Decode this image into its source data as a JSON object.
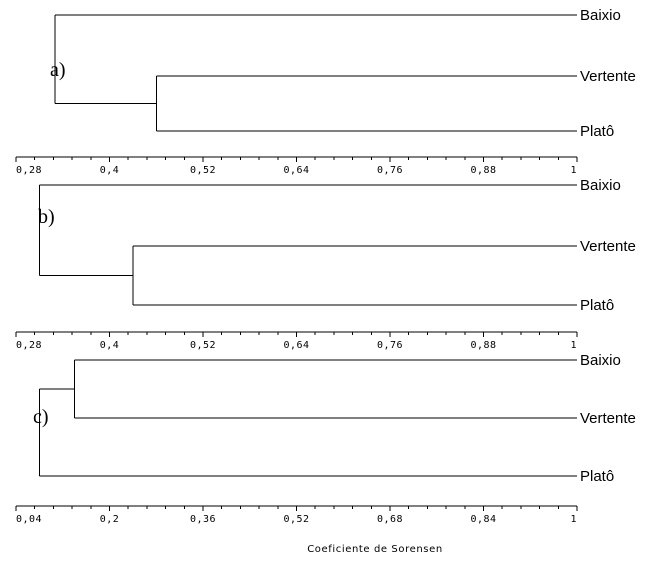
{
  "chart_data": [
    {
      "type": "dendrogram",
      "panel_label": "a)",
      "leaves": [
        "Baixio",
        "Vertente",
        "Platô"
      ],
      "merges": [
        {
          "children": [
            "Vertente",
            "Platô"
          ],
          "similarity": 0.46
        },
        {
          "children": [
            "Baixio",
            "Vertente+Platô"
          ],
          "similarity": 0.33
        }
      ],
      "xlim": [
        0.28,
        1.0
      ],
      "ticks": [
        "0,28",
        "0,4",
        "0,52",
        "0,64",
        "0,76",
        "0,88",
        "1"
      ]
    },
    {
      "type": "dendrogram",
      "panel_label": "b)",
      "leaves": [
        "Baixio",
        "Vertente",
        "Platô"
      ],
      "merges": [
        {
          "children": [
            "Vertente",
            "Platô"
          ],
          "similarity": 0.43
        },
        {
          "children": [
            "Baixio",
            "Vertente+Platô"
          ],
          "similarity": 0.31
        }
      ],
      "xlim": [
        0.28,
        1.0
      ],
      "ticks": [
        "0,28",
        "0,4",
        "0,52",
        "0,64",
        "0,76",
        "0,88",
        "1"
      ]
    },
    {
      "type": "dendrogram",
      "panel_label": "c)",
      "leaves": [
        "Baixio",
        "Vertente",
        "Platô"
      ],
      "merges": [
        {
          "children": [
            "Baixio",
            "Vertente"
          ],
          "similarity": 0.14
        },
        {
          "children": [
            "Baixio+Vertente",
            "Platô"
          ],
          "similarity": 0.08
        }
      ],
      "xlim": [
        0.04,
        1.0
      ],
      "ticks": [
        "0,04",
        "0,2",
        "0,36",
        "0,52",
        "0,68",
        "0,84",
        "1"
      ]
    }
  ],
  "xlabel": "Coeficiente de Sorensen"
}
